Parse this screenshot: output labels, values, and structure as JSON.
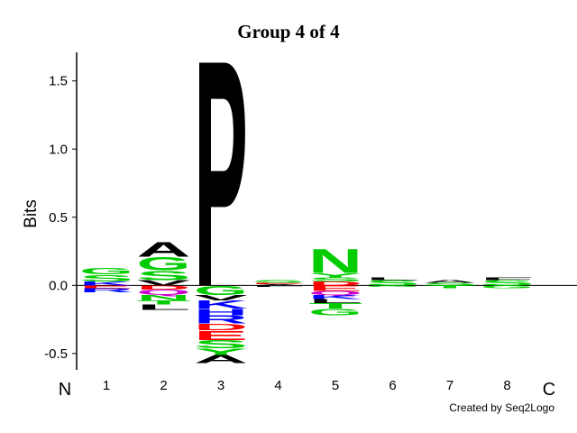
{
  "chart_data": {
    "type": "logo",
    "title": "Group 4 of 4",
    "y_label": "Bits",
    "n_label": "N",
    "c_label": "C",
    "credit": "Created by Seq2Logo",
    "ylim": [
      -0.62,
      1.71
    ],
    "yticks": [
      -0.5,
      {
        "value": 0,
        "label": "0.0"
      },
      0.5,
      {
        "value": 1,
        "label": "1.0"
      },
      1.5
    ],
    "categories": [
      "1",
      "2",
      "3",
      "4",
      "5",
      "6",
      "7",
      "8"
    ],
    "stacks": [
      [
        {
          "letter": "K",
          "value": 0.03,
          "color": "#0000ff"
        },
        {
          "letter": "S",
          "value": 0.05,
          "color": "#00cc00"
        },
        {
          "letter": "G",
          "value": 0.05,
          "color": "#00cc00"
        },
        {
          "letter": "E",
          "value": -0.02,
          "color": "#ff0000"
        },
        {
          "letter": "R",
          "value": -0.03,
          "color": "#0000ff"
        }
      ],
      [
        {
          "letter": "V",
          "value": 0.04,
          "color": "#000000"
        },
        {
          "letter": "S",
          "value": 0.07,
          "color": "#00cc00"
        },
        {
          "letter": "G",
          "value": 0.1,
          "color": "#00cc00"
        },
        {
          "letter": "A",
          "value": 0.11,
          "color": "#000000"
        },
        {
          "letter": "D",
          "value": -0.03,
          "color": "#ff0000"
        },
        {
          "letter": "Q",
          "value": -0.04,
          "color": "#cc00cc"
        },
        {
          "letter": "N",
          "value": -0.04,
          "color": "#00cc00"
        },
        {
          "letter": "T",
          "value": -0.03,
          "color": "#00cc00"
        },
        {
          "letter": "L",
          "value": -0.04,
          "color": "#000000"
        }
      ],
      [
        {
          "letter": "P",
          "value": 1.71,
          "color": "#000000"
        },
        {
          "letter": "G",
          "value": -0.07,
          "color": "#00cc00"
        },
        {
          "letter": "V",
          "value": -0.04,
          "color": "#000000"
        },
        {
          "letter": "K",
          "value": -0.06,
          "color": "#0000ff"
        },
        {
          "letter": "H",
          "value": -0.05,
          "color": "#0000ff"
        },
        {
          "letter": "R",
          "value": -0.06,
          "color": "#0000ff"
        },
        {
          "letter": "D",
          "value": -0.05,
          "color": "#ff0000"
        },
        {
          "letter": "E",
          "value": -0.07,
          "color": "#ff0000"
        },
        {
          "letter": "S",
          "value": -0.06,
          "color": "#00cc00"
        },
        {
          "letter": "Y",
          "value": -0.05,
          "color": "#00cc00"
        },
        {
          "letter": "A",
          "value": -0.06,
          "color": "#000000"
        }
      ],
      [
        {
          "letter": "A",
          "value": 0.01,
          "color": "#000000"
        },
        {
          "letter": "E",
          "value": 0.01,
          "color": "#ff0000"
        },
        {
          "letter": "S",
          "value": 0.02,
          "color": "#00cc00"
        },
        {
          "letter": "L",
          "value": -0.01,
          "color": "#000000"
        }
      ],
      [
        {
          "letter": "D",
          "value": 0.03,
          "color": "#ff0000"
        },
        {
          "letter": "S",
          "value": 0.03,
          "color": "#00cc00"
        },
        {
          "letter": "Y",
          "value": 0.03,
          "color": "#00cc00"
        },
        {
          "letter": "N",
          "value": 0.18,
          "color": "#00cc00"
        },
        {
          "letter": "E",
          "value": -0.04,
          "color": "#ff0000"
        },
        {
          "letter": "Q",
          "value": -0.03,
          "color": "#cc00cc"
        },
        {
          "letter": "K",
          "value": -0.03,
          "color": "#0000ff"
        },
        {
          "letter": "L",
          "value": -0.03,
          "color": "#000000"
        },
        {
          "letter": "T",
          "value": -0.04,
          "color": "#00cc00"
        },
        {
          "letter": "G",
          "value": -0.05,
          "color": "#00cc00"
        }
      ],
      [
        {
          "letter": "S",
          "value": 0.04,
          "color": "#00cc00"
        },
        {
          "letter": "L",
          "value": 0.02,
          "color": "#000000"
        },
        {
          "letter": "G",
          "value": -0.01,
          "color": "#00cc00"
        }
      ],
      [
        {
          "letter": "S",
          "value": 0.02,
          "color": "#00cc00"
        },
        {
          "letter": "A",
          "value": 0.02,
          "color": "#000000"
        },
        {
          "letter": "T",
          "value": -0.02,
          "color": "#00cc00"
        }
      ],
      [
        {
          "letter": "S",
          "value": 0.04,
          "color": "#00cc00"
        },
        {
          "letter": "F",
          "value": 0.02,
          "color": "#000000"
        },
        {
          "letter": "G",
          "value": -0.02,
          "color": "#00cc00"
        }
      ]
    ]
  }
}
